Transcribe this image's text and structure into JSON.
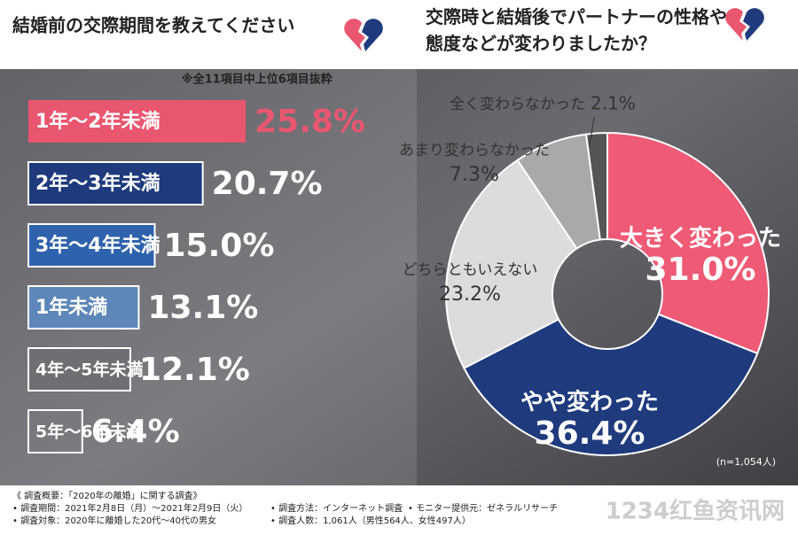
{
  "chart_data": [
    {
      "type": "bar",
      "title": "結婚前の交際期間を教えてください",
      "note": "※全11項目中上位6項目抜粋",
      "categories": [
        "1年～2年未満",
        "2年～3年未満",
        "3年～4年未満",
        "1年未満",
        "4年～5年未満",
        "5年～6年未満"
      ],
      "values": [
        25.8,
        20.7,
        15.0,
        13.1,
        12.1,
        6.4
      ],
      "value_labels": [
        "25.8%",
        "20.7%",
        "15.0%",
        "13.1%",
        "12.1%",
        "6.4%"
      ],
      "colors": [
        "#e9566f",
        "#1f3a7d",
        "#2f62ad",
        "#5d87b8",
        "#6f6f73",
        "transparent"
      ]
    },
    {
      "type": "pie",
      "title": "交際時と結婚後でパートナーの性格や態度などが変わりましたか？",
      "note": "(n=1,054人)",
      "categories": [
        "大きく変わった",
        "やや変わった",
        "どちらともいえない",
        "あまり変わらなかった",
        "全く変わらなかった"
      ],
      "values": [
        31.0,
        36.4,
        23.2,
        7.3,
        2.1
      ],
      "value_labels": [
        "31.0%",
        "36.4%",
        "23.2%",
        "7.3%",
        "2.1%"
      ],
      "colors": [
        "#ef5a76",
        "#1f3a7d",
        "#dcdcdc",
        "#a9a9a9",
        "#555555"
      ]
    }
  ],
  "footer": {
    "lines": [
      "《 調査概要：「2020年の離婚」に関する調査》",
      "• 調査期間：2021年2月8日（月）～2021年2月9日（火）",
      "• 調査対象：2020年に離婚した20代～40代の男女",
      "• 調査方法：インターネット調査",
      "• モニター提供元：ゼネラルリサーチ",
      "• 調査人数：1,061人（男性564人、女性497人）"
    ],
    "watermark": "1234红鱼资讯网"
  }
}
